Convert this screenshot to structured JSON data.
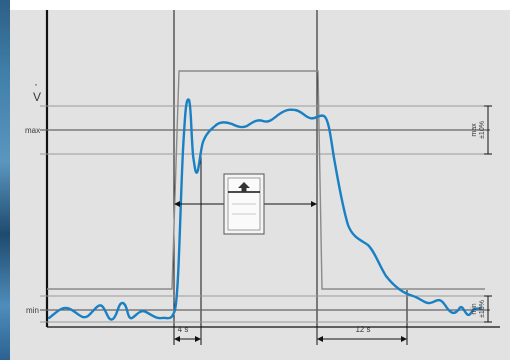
{
  "diagram": {
    "y_axis_symbol": "V",
    "y_axis_accent": "·",
    "levels": {
      "max_label": "max",
      "min_label": "min"
    },
    "tolerance": {
      "max_band_line1": "max",
      "max_band_line2": "±10%",
      "min_band_line1": "min",
      "min_band_line2": "±10%"
    },
    "timings": {
      "rise_time": "4 s",
      "fall_time": "12 s"
    },
    "switch_icon": "up-arrow-switch-icon",
    "colors": {
      "flow_curve": "#1a80c4",
      "setpoint": "#8a8a8a",
      "axis": "#111111",
      "background": "#e2e2e2"
    }
  }
}
